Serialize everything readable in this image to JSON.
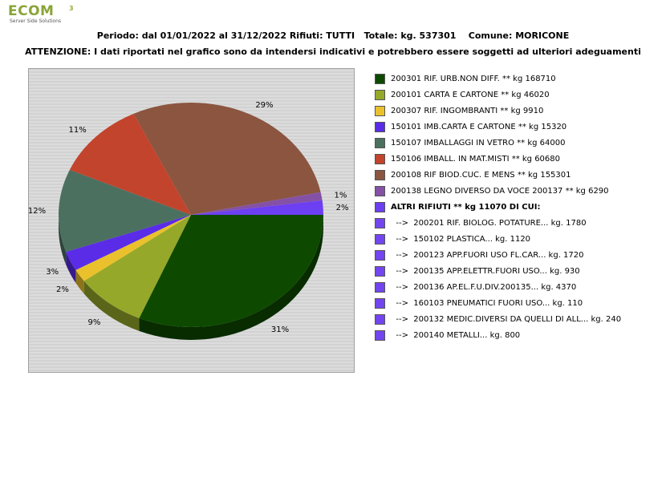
{
  "header": {
    "logo_text": "ECOM",
    "logo_superscript": "3",
    "logo_tagline": "Server Side Solutions",
    "title_line1": "Periodo: dal 01/01/2022 al 31/12/2022 Rifiuti: TUTTI   Totale: kg. 537301    Comune: MORICONE",
    "title_line2": "ATTENZIONE: I dati riportati nel grafico sono da intendersi indicativi e potrebbero essere soggetti ad ulteriori adeguamenti"
  },
  "colors": {
    "plot_background": "#dadada",
    "plot_border": "#a0a0a0",
    "sub_item": "#7345f0"
  },
  "chart_data": {
    "type": "pie",
    "style": "3d",
    "unit": "kg",
    "total": 537301,
    "slices": [
      {
        "code": "200301",
        "name": "RIF. URB.NON DIFF.",
        "value": 168710,
        "percent_label": "31%",
        "color": "#0d4a00"
      },
      {
        "code": "200101",
        "name": "CARTA E CARTONE",
        "value": 46020,
        "percent_label": "9%",
        "color": "#96a82a"
      },
      {
        "code": "200307",
        "name": "RIF. INGOMBRANTI",
        "value": 9910,
        "percent_label": "2%",
        "color": "#eac12c"
      },
      {
        "code": "150101",
        "name": "IMB.CARTA E CARTONE",
        "value": 15320,
        "percent_label": "3%",
        "color": "#5a2ce8"
      },
      {
        "code": "150107",
        "name": "IMBALLAGGI IN VETRO",
        "value": 64000,
        "percent_label": "12%",
        "color": "#4c7060"
      },
      {
        "code": "150106",
        "name": "IMBALL. IN MAT.MISTI",
        "value": 60680,
        "percent_label": "11%",
        "color": "#c2442c"
      },
      {
        "code": "200108",
        "name": "RIF BIOD.CUC. E MENS",
        "value": 155301,
        "percent_label": "29%",
        "color": "#8b5540"
      },
      {
        "code": "200138",
        "name": "LEGNO DIVERSO DA VOCE 200137",
        "value": 6290,
        "percent_label": "1%",
        "color": "#8451a6"
      },
      {
        "code": "ALTRI",
        "name": "ALTRI RIFIUTI",
        "value": 11070,
        "percent_label": "2%",
        "color": "#6c3ff2"
      }
    ],
    "legend_placement": "right",
    "legend": [
      {
        "label": "200301 RIF. URB.NON DIFF. ** kg 168710",
        "color": "#0d4a00",
        "bold": false
      },
      {
        "label": "200101 CARTA E CARTONE ** kg 46020",
        "color": "#96a82a",
        "bold": false
      },
      {
        "label": "200307 RIF. INGOMBRANTI ** kg 9910",
        "color": "#eac12c",
        "bold": false
      },
      {
        "label": "150101 IMB.CARTA E CARTONE ** kg 15320",
        "color": "#5a2ce8",
        "bold": false
      },
      {
        "label": "150107 IMBALLAGGI IN VETRO ** kg 64000",
        "color": "#4c7060",
        "bold": false
      },
      {
        "label": "150106 IMBALL. IN MAT.MISTI ** kg 60680",
        "color": "#c2442c",
        "bold": false
      },
      {
        "label": "200108 RIF BIOD.CUC. E MENS ** kg 155301",
        "color": "#8b5540",
        "bold": false
      },
      {
        "label": "200138 LEGNO DIVERSO DA VOCE 200137 ** kg 6290",
        "color": "#8451a6",
        "bold": false
      },
      {
        "label": "ALTRI RIFIUTI ** kg 11070 DI CUI:",
        "color": "#6c3ff2",
        "bold": true
      },
      {
        "label": "  -->  200201 RIF. BIOLOG. POTATURE... kg. 1780",
        "color": "#7345f0",
        "bold": false
      },
      {
        "label": "  -->  150102 PLASTICA... kg. 1120",
        "color": "#7345f0",
        "bold": false
      },
      {
        "label": "  -->  200123 APP.FUORI USO FL.CAR... kg. 1720",
        "color": "#7345f0",
        "bold": false
      },
      {
        "label": "  -->  200135 APP.ELETTR.FUORI USO... kg. 930",
        "color": "#7345f0",
        "bold": false
      },
      {
        "label": "  -->  200136 AP.EL.F.U.DIV.200135... kg. 4370",
        "color": "#7345f0",
        "bold": false
      },
      {
        "label": "  -->  160103 PNEUMATICI FUORI USO... kg. 110",
        "color": "#7345f0",
        "bold": false
      },
      {
        "label": "  -->  200132 MEDIC.DIVERSI DA QUELLI DI ALL... kg. 240",
        "color": "#7345f0",
        "bold": false
      },
      {
        "label": "  -->  200140 METALLI... kg. 800",
        "color": "#7345f0",
        "bold": false
      }
    ]
  }
}
